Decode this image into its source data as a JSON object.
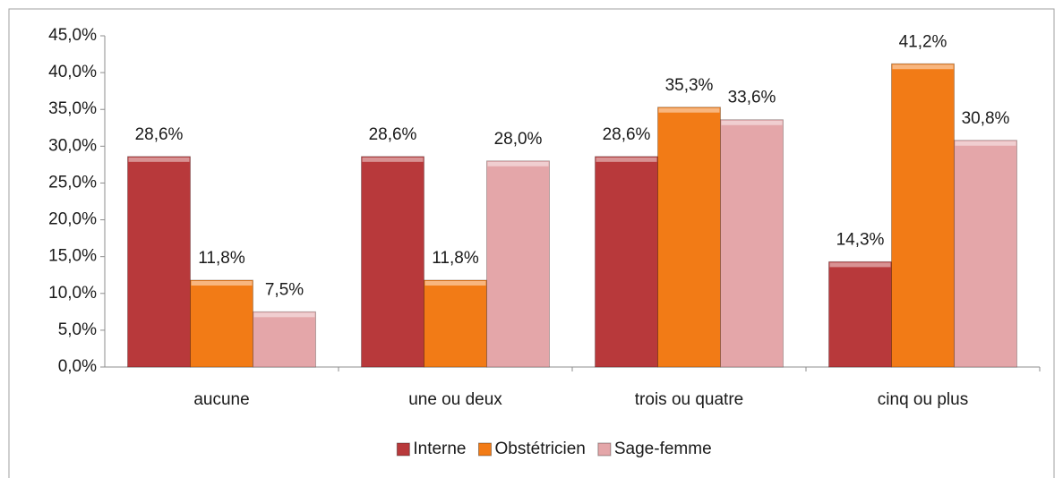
{
  "chart_data": {
    "type": "bar",
    "categories": [
      "aucune",
      "une ou deux",
      "trois ou quatre",
      "cinq ou plus"
    ],
    "series": [
      {
        "name": "Interne",
        "color": "#b8393b",
        "values": [
          28.6,
          28.6,
          28.6,
          14.3
        ],
        "value_labels": [
          "28,6%",
          "28,6%",
          "28,6%",
          "14,3%"
        ]
      },
      {
        "name": "Obstétricien",
        "color": "#f27b16",
        "values": [
          11.8,
          11.8,
          35.3,
          41.2
        ],
        "value_labels": [
          "11,8%",
          "11,8%",
          "35,3%",
          "41,2%"
        ]
      },
      {
        "name": "Sage-femme",
        "color": "#e4a6a9",
        "values": [
          7.5,
          28.0,
          33.6,
          30.8
        ],
        "value_labels": [
          "7,5%",
          "28,0%",
          "33,6%",
          "30,8%"
        ]
      }
    ],
    "ylim": [
      0,
      45
    ],
    "yticks": [
      {
        "value": 0,
        "label": "0,0%"
      },
      {
        "value": 5,
        "label": "5,0%"
      },
      {
        "value": 10,
        "label": "10,0%"
      },
      {
        "value": 15,
        "label": "15,0%"
      },
      {
        "value": 20,
        "label": "20,0%"
      },
      {
        "value": 25,
        "label": "25,0%"
      },
      {
        "value": 30,
        "label": "30,0%"
      },
      {
        "value": 35,
        "label": "35,0%"
      },
      {
        "value": 40,
        "label": "40,0%"
      },
      {
        "value": 45,
        "label": "45,0%"
      }
    ],
    "grid": false,
    "legend": "bottom"
  }
}
